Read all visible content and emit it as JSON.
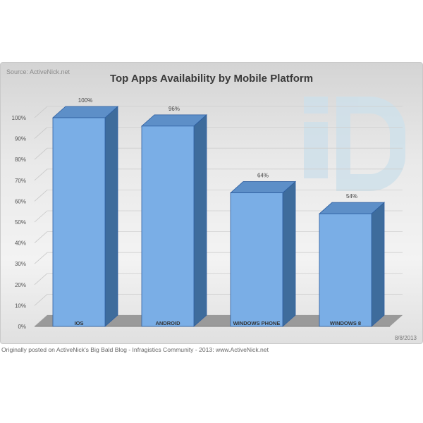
{
  "source_label": "Source: ActiveNick.net",
  "date_label": "8/8/2013",
  "caption": "Originally posted on ActiveNick's Big Bald Blog - Infragistics Community - 2013: www.ActiveNick.net",
  "watermark_icon": "id-logo-watermark",
  "colors": {
    "bar_front": "#7aaee6",
    "bar_side": "#3e6c9c",
    "bar_top": "#5d8fc8",
    "bar_edge": "#2d5ea0",
    "floor": "#9a9a9a",
    "watermark": "#cfe0ea"
  },
  "chart_data": {
    "type": "bar",
    "title": "Top Apps Availability by Mobile Platform",
    "xlabel": "",
    "ylabel": "",
    "categories": [
      "IOS",
      "ANDROID",
      "WINDOWS PHONE",
      "WINDOWS 8"
    ],
    "values": [
      100,
      96,
      64,
      54
    ],
    "data_labels": [
      "100%",
      "96%",
      "64%",
      "54%"
    ],
    "ylim": [
      0,
      100
    ],
    "yticks": [
      "0%",
      "10%",
      "20%",
      "30%",
      "40%",
      "50%",
      "60%",
      "70%",
      "80%",
      "90%",
      "100%"
    ],
    "grid": true,
    "style": "3d-column"
  }
}
